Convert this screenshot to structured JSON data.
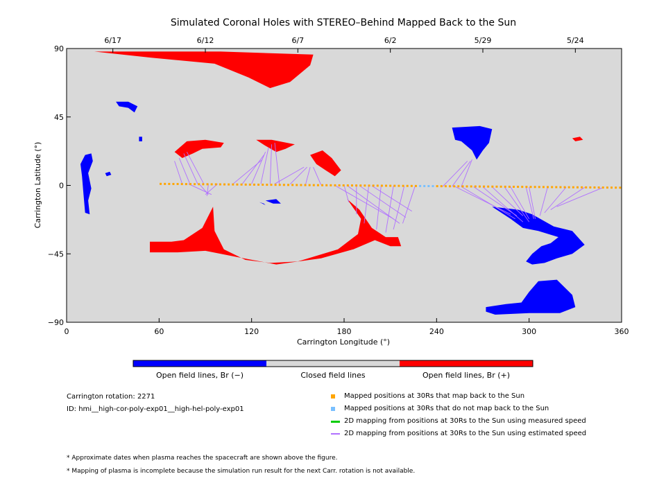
{
  "chart_data": {
    "type": "map",
    "title": "Simulated Coronal Holes with STEREO–Behind Mapped Back to the Sun",
    "xlabel": "Carrington Longitude (°)",
    "ylabel": "Carrington Latitude (°)",
    "xlim": [
      0,
      360
    ],
    "ylim": [
      -90,
      90
    ],
    "x_ticks": [
      0,
      60,
      120,
      180,
      240,
      300,
      360
    ],
    "y_ticks": [
      90,
      45,
      0,
      -45,
      -90
    ],
    "y_tick_labels": [
      "90",
      "45",
      "0",
      "−45",
      "−90"
    ],
    "top_axis_dates": [
      {
        "label": "6/17",
        "lon": 30
      },
      {
        "label": "6/12",
        "lon": 90
      },
      {
        "label": "6/7",
        "lon": 150
      },
      {
        "label": "6/2",
        "lon": 210
      },
      {
        "label": "5/29",
        "lon": 270
      },
      {
        "label": "5/24",
        "lon": 330
      }
    ],
    "colors": {
      "background": "#d9d9d9",
      "positive": "#ff0000",
      "negative": "#0000ff",
      "closed": "#d9d9d9",
      "mapped": "#ffa500",
      "unmapped": "#79c0ff",
      "measured_line": "#00cc00",
      "estimated_line": "#b070ff"
    },
    "coronal_holes": [
      {
        "polarity": "+",
        "points": [
          [
            18,
            88
          ],
          [
            100,
            88
          ],
          [
            160,
            86
          ],
          [
            158,
            79
          ],
          [
            145,
            68
          ],
          [
            132,
            64
          ],
          [
            118,
            71
          ],
          [
            96,
            80
          ],
          [
            55,
            84
          ]
        ]
      },
      {
        "polarity": "+",
        "points": [
          [
            70,
            22
          ],
          [
            78,
            29
          ],
          [
            90,
            30
          ],
          [
            102,
            28
          ],
          [
            100,
            25
          ],
          [
            88,
            24
          ],
          [
            82,
            21
          ],
          [
            75,
            18
          ]
        ]
      },
      {
        "polarity": "+",
        "points": [
          [
            123,
            30
          ],
          [
            133,
            30
          ],
          [
            148,
            27
          ],
          [
            142,
            24
          ],
          [
            136,
            22
          ],
          [
            129,
            26
          ]
        ]
      },
      {
        "polarity": "+",
        "points": [
          [
            158,
            20
          ],
          [
            166,
            23
          ],
          [
            172,
            18
          ],
          [
            178,
            10
          ],
          [
            174,
            6
          ],
          [
            168,
            10
          ],
          [
            162,
            14
          ]
        ]
      },
      {
        "polarity": "+",
        "points": [
          [
            95,
            -14
          ],
          [
            88,
            -28
          ],
          [
            76,
            -36
          ],
          [
            68,
            -37
          ],
          [
            54,
            -37
          ],
          [
            54,
            -44
          ],
          [
            72,
            -44
          ],
          [
            90,
            -43
          ],
          [
            110,
            -47
          ],
          [
            136,
            -52
          ],
          [
            165,
            -48
          ],
          [
            186,
            -42
          ],
          [
            200,
            -36
          ],
          [
            210,
            -40
          ],
          [
            217,
            -40
          ],
          [
            215,
            -34
          ],
          [
            207,
            -34
          ],
          [
            198,
            -28
          ],
          [
            190,
            -16
          ],
          [
            182,
            -9
          ],
          [
            191,
            -22
          ],
          [
            189,
            -32
          ],
          [
            176,
            -42
          ],
          [
            150,
            -50
          ],
          [
            132,
            -51
          ],
          [
            116,
            -49
          ],
          [
            102,
            -42
          ],
          [
            96,
            -30
          ]
        ]
      },
      {
        "polarity": "+",
        "points": [
          [
            328,
            31
          ],
          [
            333,
            32
          ],
          [
            335,
            30
          ],
          [
            330,
            29
          ]
        ]
      },
      {
        "polarity": "−",
        "points": [
          [
            12,
            20
          ],
          [
            16,
            21
          ],
          [
            17,
            16
          ],
          [
            14,
            8
          ],
          [
            16,
            -2
          ],
          [
            14,
            -10
          ],
          [
            15,
            -19
          ],
          [
            12,
            -18
          ],
          [
            11,
            -6
          ],
          [
            10,
            6
          ],
          [
            9,
            14
          ]
        ]
      },
      {
        "polarity": "−",
        "points": [
          [
            25,
            8
          ],
          [
            28,
            9
          ],
          [
            29,
            7
          ],
          [
            26,
            6
          ]
        ]
      },
      {
        "polarity": "−",
        "points": [
          [
            32,
            55
          ],
          [
            40,
            55
          ],
          [
            46,
            52
          ],
          [
            44,
            48
          ],
          [
            40,
            51
          ],
          [
            34,
            52
          ]
        ]
      },
      {
        "polarity": "−",
        "points": [
          [
            47,
            32
          ],
          [
            49,
            32
          ],
          [
            49,
            29
          ],
          [
            47,
            29
          ]
        ]
      },
      {
        "polarity": "−",
        "points": [
          [
            125,
            -11
          ],
          [
            128,
            -12
          ],
          [
            129,
            -13
          ],
          [
            127,
            -12
          ]
        ]
      },
      {
        "polarity": "−",
        "points": [
          [
            129,
            -10
          ],
          [
            136,
            -9
          ],
          [
            139,
            -12
          ],
          [
            134,
            -12
          ]
        ]
      },
      {
        "polarity": "−",
        "points": [
          [
            250,
            38
          ],
          [
            268,
            39
          ],
          [
            276,
            37
          ],
          [
            274,
            28
          ],
          [
            270,
            23
          ],
          [
            266,
            17
          ],
          [
            263,
            23
          ],
          [
            256,
            29
          ],
          [
            252,
            30
          ]
        ]
      },
      {
        "polarity": "−",
        "points": [
          [
            276,
            -14
          ],
          [
            293,
            -16
          ],
          [
            302,
            -19
          ],
          [
            316,
            -27
          ],
          [
            328,
            -30
          ],
          [
            336,
            -39
          ],
          [
            328,
            -45
          ],
          [
            318,
            -48
          ],
          [
            310,
            -51
          ],
          [
            302,
            -52
          ],
          [
            298,
            -50
          ],
          [
            302,
            -45
          ],
          [
            308,
            -40
          ],
          [
            314,
            -38
          ],
          [
            319,
            -34
          ],
          [
            306,
            -30
          ],
          [
            296,
            -28
          ],
          [
            288,
            -22
          ]
        ]
      },
      {
        "polarity": "−",
        "points": [
          [
            272,
            -80
          ],
          [
            285,
            -78
          ],
          [
            295,
            -77
          ],
          [
            300,
            -70
          ],
          [
            306,
            -63
          ],
          [
            318,
            -62
          ],
          [
            328,
            -72
          ],
          [
            330,
            -80
          ],
          [
            320,
            -84
          ],
          [
            300,
            -84
          ],
          [
            278,
            -85
          ],
          [
            272,
            -83
          ]
        ]
      }
    ],
    "mapped_points": {
      "lon_start": 61,
      "lon_end": 359,
      "count": 109,
      "lat_start": 1,
      "lat_end": -1.5
    },
    "unmapped_range": [
      229,
      238
    ],
    "estimated_speed_lines": [
      [
        75,
        1,
        70,
        16
      ],
      [
        80,
        1,
        73,
        18
      ],
      [
        85,
        1,
        76,
        21
      ],
      [
        89,
        1,
        78,
        22
      ],
      [
        79,
        1,
        94,
        -6
      ],
      [
        86,
        1,
        92,
        -6
      ],
      [
        92,
        1,
        91,
        -7
      ],
      [
        98,
        1,
        90,
        -6
      ],
      [
        108,
        1,
        127,
        17
      ],
      [
        114,
        1,
        128,
        20
      ],
      [
        120,
        1,
        129,
        22
      ],
      [
        126,
        1,
        131,
        25
      ],
      [
        132,
        1,
        133,
        27
      ],
      [
        138,
        1,
        135,
        28
      ],
      [
        135,
        1,
        154,
        12
      ],
      [
        145,
        0.8,
        156,
        12
      ],
      [
        155,
        0.6,
        158,
        12
      ],
      [
        165,
        0.4,
        160,
        12
      ],
      [
        180,
        0,
        183,
        -11
      ],
      [
        188,
        -0.1,
        188,
        -19
      ],
      [
        196,
        -0.2,
        193,
        -25
      ],
      [
        204,
        -0.3,
        201,
        -29
      ],
      [
        212,
        -0.4,
        207,
        -31
      ],
      [
        219,
        -0.5,
        212,
        -29
      ],
      [
        226,
        -0.6,
        218,
        -25
      ],
      [
        174,
        0,
        212,
        -22
      ],
      [
        182,
        -0.1,
        216,
        -25
      ],
      [
        190,
        -0.2,
        220,
        -21
      ],
      [
        198,
        -0.3,
        224,
        -17
      ],
      [
        244,
        -0.7,
        260,
        16
      ],
      [
        250,
        -0.8,
        262,
        16
      ],
      [
        256,
        -0.8,
        263,
        17
      ],
      [
        252,
        -0.8,
        288,
        -19
      ],
      [
        264,
        -0.9,
        292,
        -20
      ],
      [
        276,
        -1,
        296,
        -20
      ],
      [
        288,
        -1,
        300,
        -22
      ],
      [
        300,
        -1.1,
        304,
        -22
      ],
      [
        312,
        -1.2,
        307,
        -20
      ],
      [
        324,
        -1.2,
        310,
        -18
      ],
      [
        336,
        -1.3,
        314,
        -16
      ],
      [
        348,
        -1.4,
        318,
        -14
      ],
      [
        256,
        -0.8,
        291,
        -22
      ],
      [
        270,
        -1,
        296,
        -24
      ],
      [
        284,
        -1,
        300,
        -24
      ],
      [
        298,
        -1.1,
        303,
        -22
      ]
    ],
    "colorbar": {
      "labels": [
        "Open field lines, Br (−)",
        "Closed field lines",
        "Open field lines, Br (+)"
      ]
    }
  },
  "metadata": {
    "carrington_rotation": "Carrington rotation: 2271",
    "id": "ID: hmi__high-cor-poly-exp01__high-hel-poly-exp01"
  },
  "legend": {
    "mapped": "Mapped positions at 30Rs that map back to the Sun",
    "unmapped": "Mapped positions at 30Rs that do not map back to the Sun",
    "measured": "2D mapping from positions at 30Rs to the Sun using measured speed",
    "estimated": "2D mapping from positions at 30Rs to the Sun using estimated speed"
  },
  "notes": {
    "dates_note": "* Approximate dates when plasma reaches the spacecraft are shown above the figure.",
    "incomplete_note": "* Mapping of plasma is incomplete because the simulation run result for the next Carr. rotation is not available."
  }
}
